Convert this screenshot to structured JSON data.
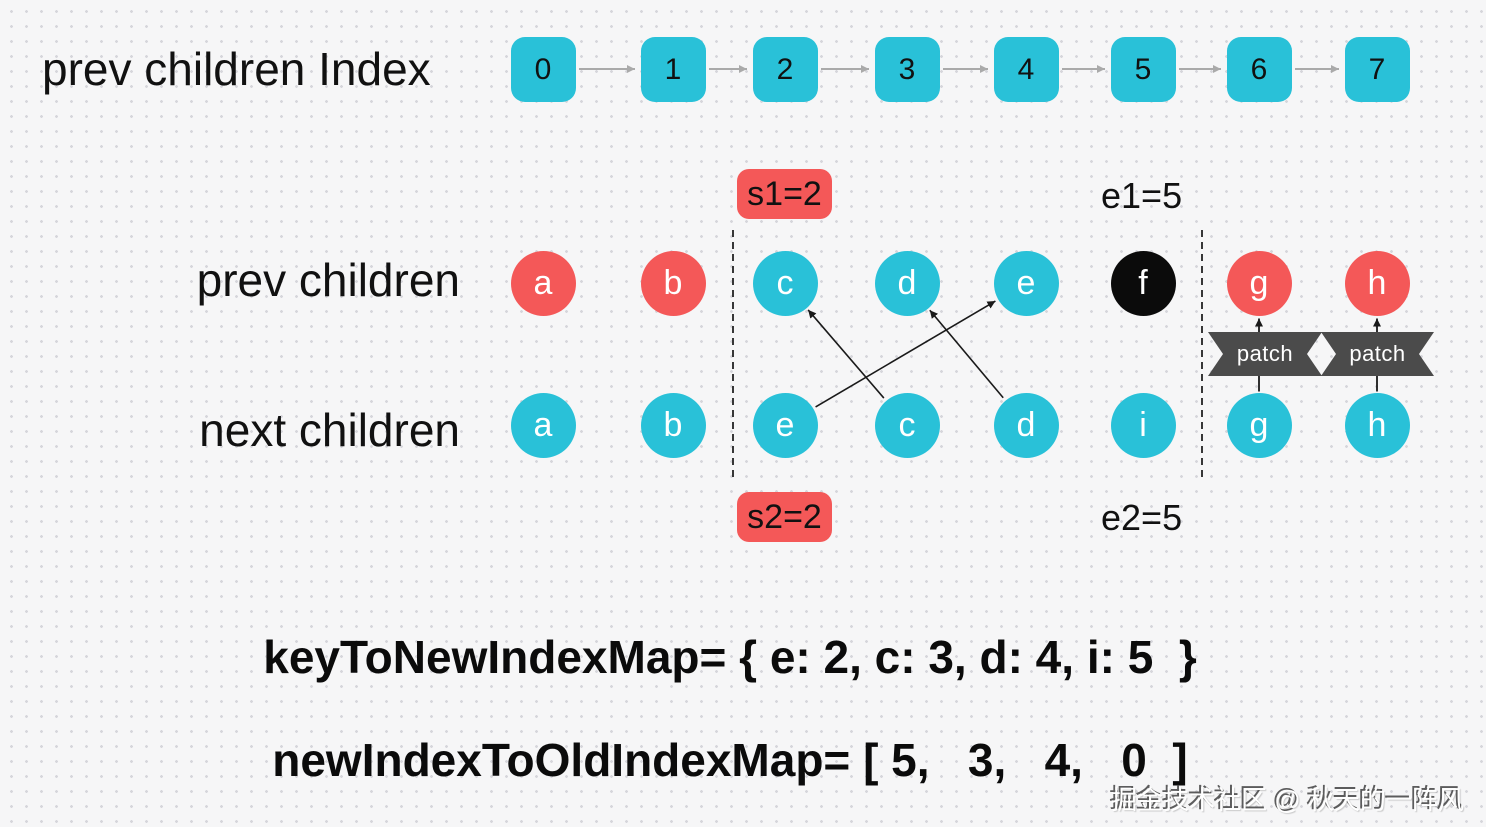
{
  "header": {
    "index_row_label": "prev children Index"
  },
  "index_row": {
    "values": [
      "0",
      "1",
      "2",
      "3",
      "4",
      "5",
      "6",
      "7"
    ]
  },
  "pointers": {
    "s1": "s1=2",
    "e1": "e1=5",
    "s2": "s2=2",
    "e2": "e2=5"
  },
  "prev_row": {
    "label": "prev children",
    "nodes": [
      {
        "key": "a",
        "color": "red"
      },
      {
        "key": "b",
        "color": "red"
      },
      {
        "key": "c",
        "color": "cyan"
      },
      {
        "key": "d",
        "color": "cyan"
      },
      {
        "key": "e",
        "color": "cyan"
      },
      {
        "key": "f",
        "color": "node_black"
      },
      {
        "key": "g",
        "color": "red"
      },
      {
        "key": "h",
        "color": "red"
      }
    ]
  },
  "next_row": {
    "label": "next children",
    "nodes": [
      {
        "key": "a",
        "color": "cyan"
      },
      {
        "key": "b",
        "color": "cyan"
      },
      {
        "key": "e",
        "color": "cyan"
      },
      {
        "key": "c",
        "color": "cyan"
      },
      {
        "key": "d",
        "color": "cyan"
      },
      {
        "key": "i",
        "color": "cyan"
      },
      {
        "key": "g",
        "color": "cyan"
      },
      {
        "key": "h",
        "color": "cyan"
      }
    ]
  },
  "mappings": [
    {
      "key": "e",
      "next_col": 2,
      "prev_col": 4
    },
    {
      "key": "c",
      "next_col": 3,
      "prev_col": 2
    },
    {
      "key": "d",
      "next_col": 4,
      "prev_col": 3
    }
  ],
  "patch": {
    "label": "patch",
    "columns": [
      6,
      7
    ]
  },
  "formulas": {
    "key_to_new_index_map": "keyToNewIndexMap= { e: 2, c: 3, d: 4, i: 5  }",
    "new_index_to_old_index_map": "newIndexToOldIndexMap= [ 5,   3,   4,   0  ]"
  },
  "watermark": "掘金技术社区 @ 秋天的一阵风",
  "colors": {
    "cyan": "#29c1d8",
    "red": "#f45858",
    "node_black": "#0b0b0b",
    "ribbon": "#4b4b4b",
    "index_arrow": "#aaaaaa",
    "line": "#1a1a1a",
    "badge_text": "#111111"
  }
}
